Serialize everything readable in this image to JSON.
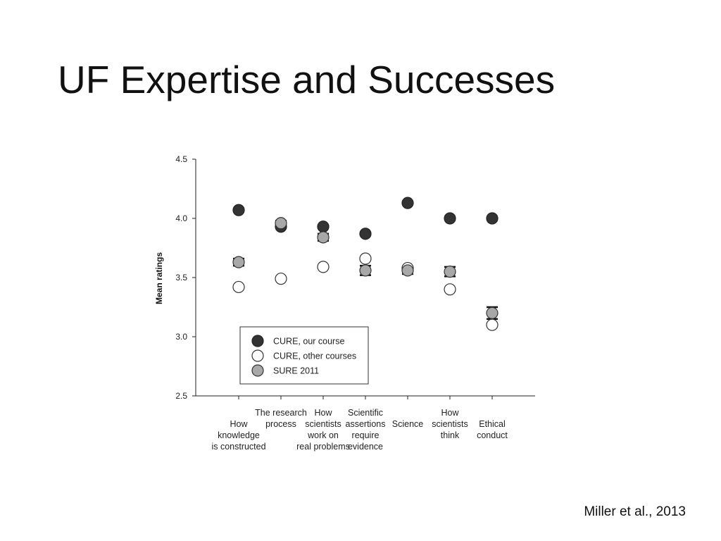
{
  "slide": {
    "title": "UF Expertise and Successes",
    "citation": "Miller et al., 2013"
  },
  "chart_data": {
    "type": "scatter",
    "title": "",
    "xlabel": "",
    "ylabel": "Mean ratings",
    "ylim": [
      2.5,
      4.5
    ],
    "yticks": [
      "4.5",
      "4.0",
      "3.5",
      "3.0",
      "2.5"
    ],
    "categories": [
      [
        "How",
        "knowledge",
        "is constructed"
      ],
      [
        "The research",
        "process"
      ],
      [
        "How",
        "scientists",
        "work on",
        "real problems"
      ],
      [
        "Scientific",
        "assertions",
        "require",
        "evidence"
      ],
      [
        "Science"
      ],
      [
        "How",
        "scientists",
        "think"
      ],
      [
        "Ethical",
        "conduct"
      ]
    ],
    "series": [
      {
        "name": "CURE, our course",
        "fill": "#333333",
        "stroke": "#222222",
        "values": [
          4.07,
          3.93,
          3.93,
          3.87,
          4.13,
          4.0,
          4.0
        ],
        "error": [
          null,
          null,
          null,
          null,
          null,
          null,
          null
        ]
      },
      {
        "name": "CURE, other courses",
        "fill": "#ffffff",
        "stroke": "#333333",
        "values": [
          3.42,
          3.49,
          3.59,
          3.66,
          3.58,
          3.4,
          3.1
        ],
        "error": [
          null,
          null,
          null,
          null,
          null,
          null,
          null
        ]
      },
      {
        "name": "SURE 2011",
        "fill": "#a8a8a8",
        "stroke": "#333333",
        "values": [
          3.63,
          3.96,
          3.84,
          3.56,
          3.56,
          3.55,
          3.2
        ],
        "error": [
          0.03,
          0.02,
          0.03,
          0.04,
          0.03,
          0.04,
          0.05
        ]
      }
    ],
    "legend": {
      "position": "lower-left"
    },
    "grid": false
  }
}
